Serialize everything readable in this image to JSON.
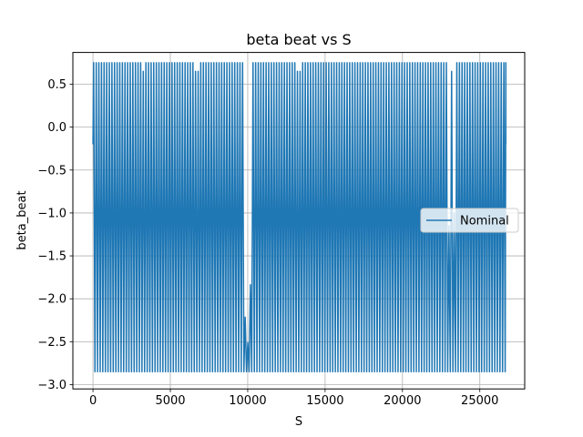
{
  "chart_data": {
    "type": "line",
    "title": "beta beat vs S",
    "xlabel": "S",
    "ylabel": "beta_beat",
    "xlim": [
      -1300,
      27900
    ],
    "ylim": [
      -3.05,
      0.87
    ],
    "x_ticks": [
      0,
      5000,
      10000,
      15000,
      20000,
      25000
    ],
    "x_tick_labels": [
      "0",
      "5000",
      "10000",
      "15000",
      "20000",
      "25000"
    ],
    "y_ticks": [
      0.5,
      0.0,
      -0.5,
      -1.0,
      -1.5,
      -2.0,
      -2.5,
      -3.0
    ],
    "y_tick_labels": [
      "0.5",
      "0.0",
      "−0.5",
      "−1.0",
      "−1.5",
      "−2.0",
      "−2.5",
      "−3.0"
    ],
    "grid": true,
    "legend_position": "center-right",
    "colors": {
      "series": "#1f77b4"
    },
    "series": [
      {
        "name": "Nominal",
        "s_range": [
          0,
          26680
        ],
        "max": 0.75,
        "min": -2.85,
        "start_value": -0.2,
        "end_value": -0.2,
        "approx_oscillations": 158,
        "dense_bands": [
          [
            0,
            3300
          ],
          [
            3300,
            6700
          ],
          [
            7100,
            13400
          ],
          [
            13600,
            23200
          ],
          [
            23400,
            26680
          ]
        ],
        "local_minima_of_envelope": [
          [
            10000,
            -2.7
          ],
          [
            23200,
            -1.75
          ]
        ]
      }
    ]
  }
}
